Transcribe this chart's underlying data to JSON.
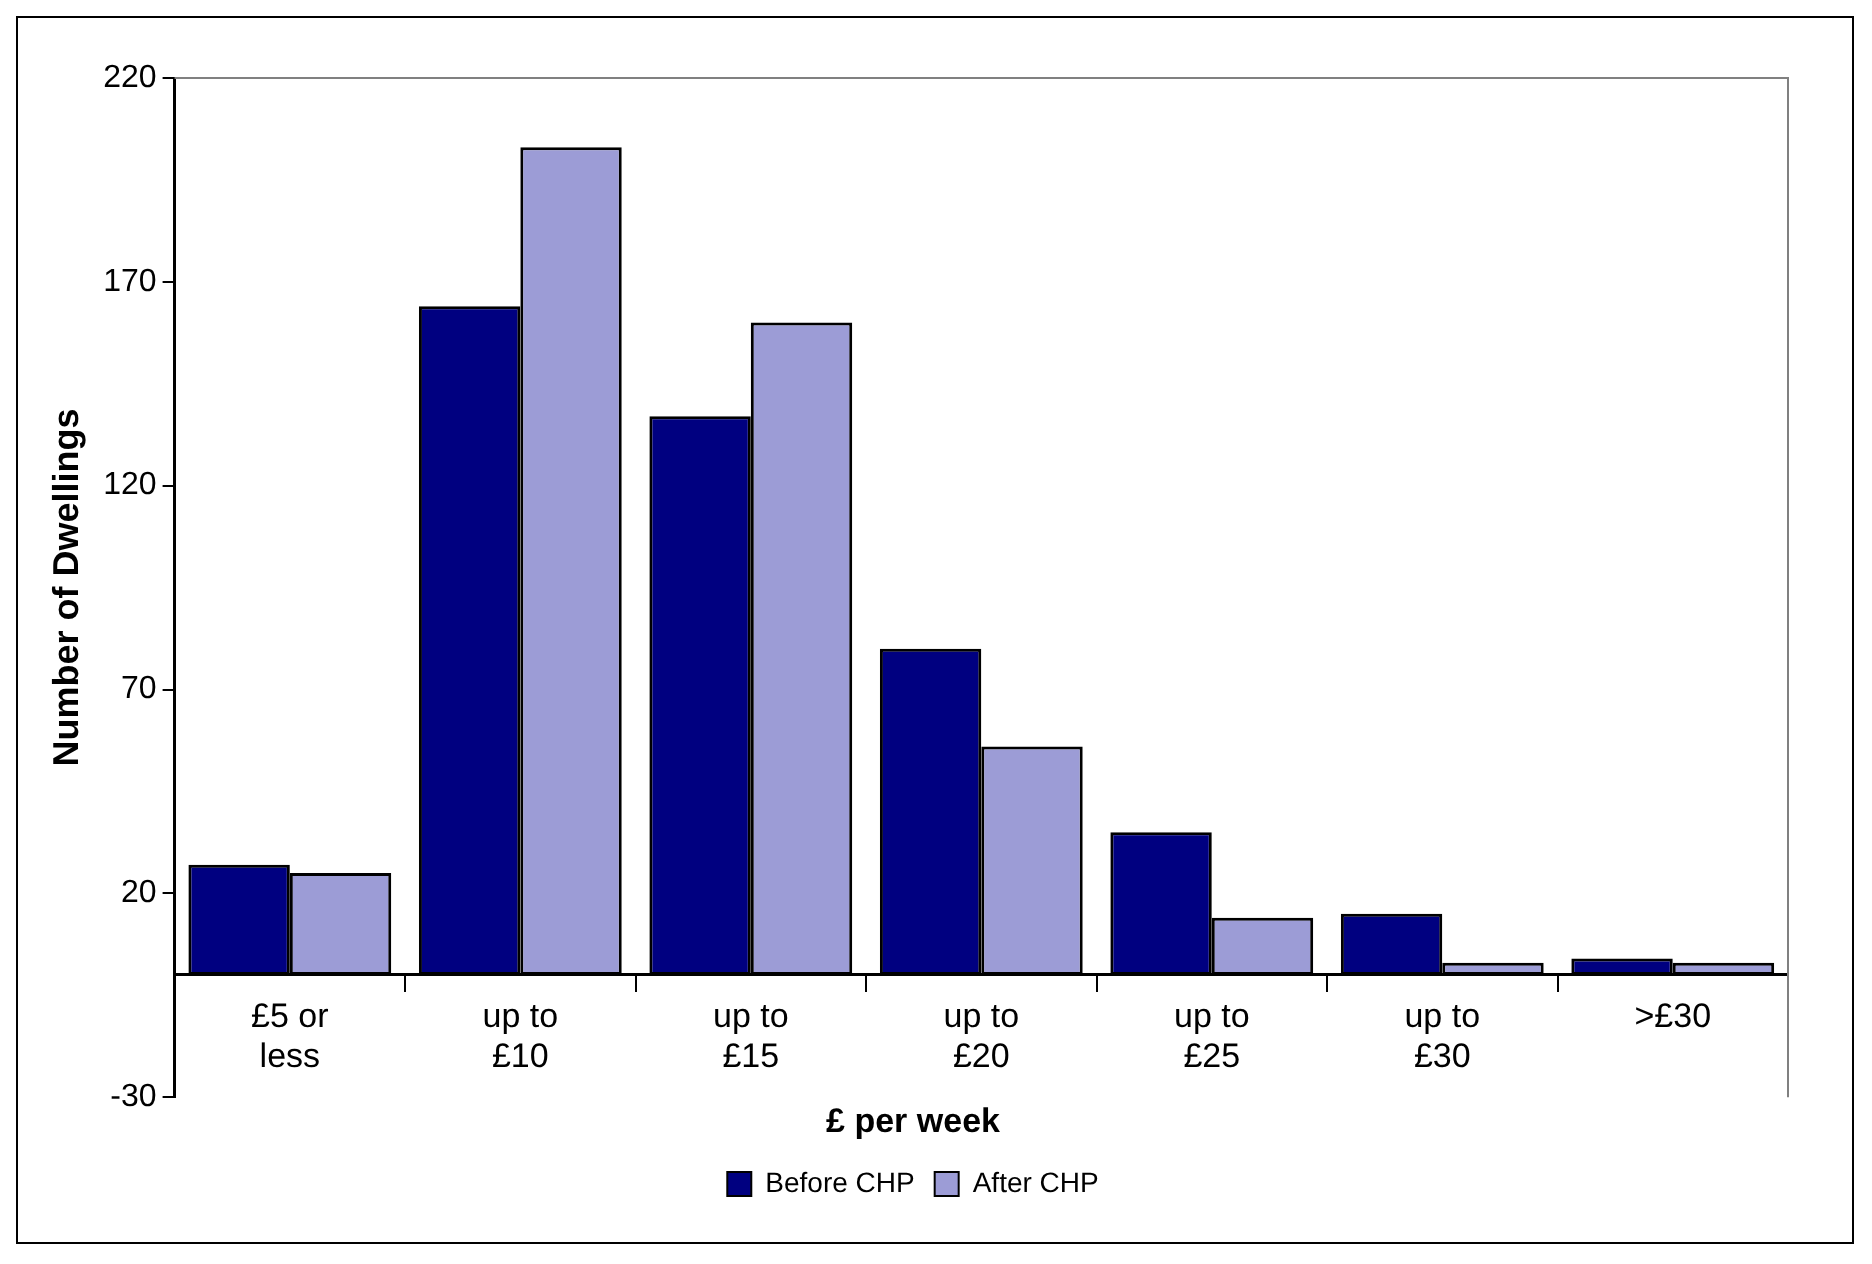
{
  "chart_data": {
    "type": "bar",
    "xlabel": "£ per week",
    "ylabel": "Number of Dwellings",
    "categories": [
      "£5 or less",
      "up to £10",
      "up to £15",
      "up to £20",
      "up to £25",
      "up to £30",
      ">£30"
    ],
    "series": [
      {
        "name": "Before CHP",
        "color": "#000080",
        "values": [
          27,
          164,
          137,
          80,
          35,
          15,
          4
        ]
      },
      {
        "name": "After CHP",
        "color": "#9c9cd6",
        "values": [
          25,
          203,
          160,
          56,
          14,
          3,
          3
        ]
      }
    ],
    "ylim": [
      -30,
      220
    ],
    "yticks": [
      -30,
      20,
      70,
      120,
      170,
      220
    ],
    "grid": false,
    "legend": "bottom"
  }
}
